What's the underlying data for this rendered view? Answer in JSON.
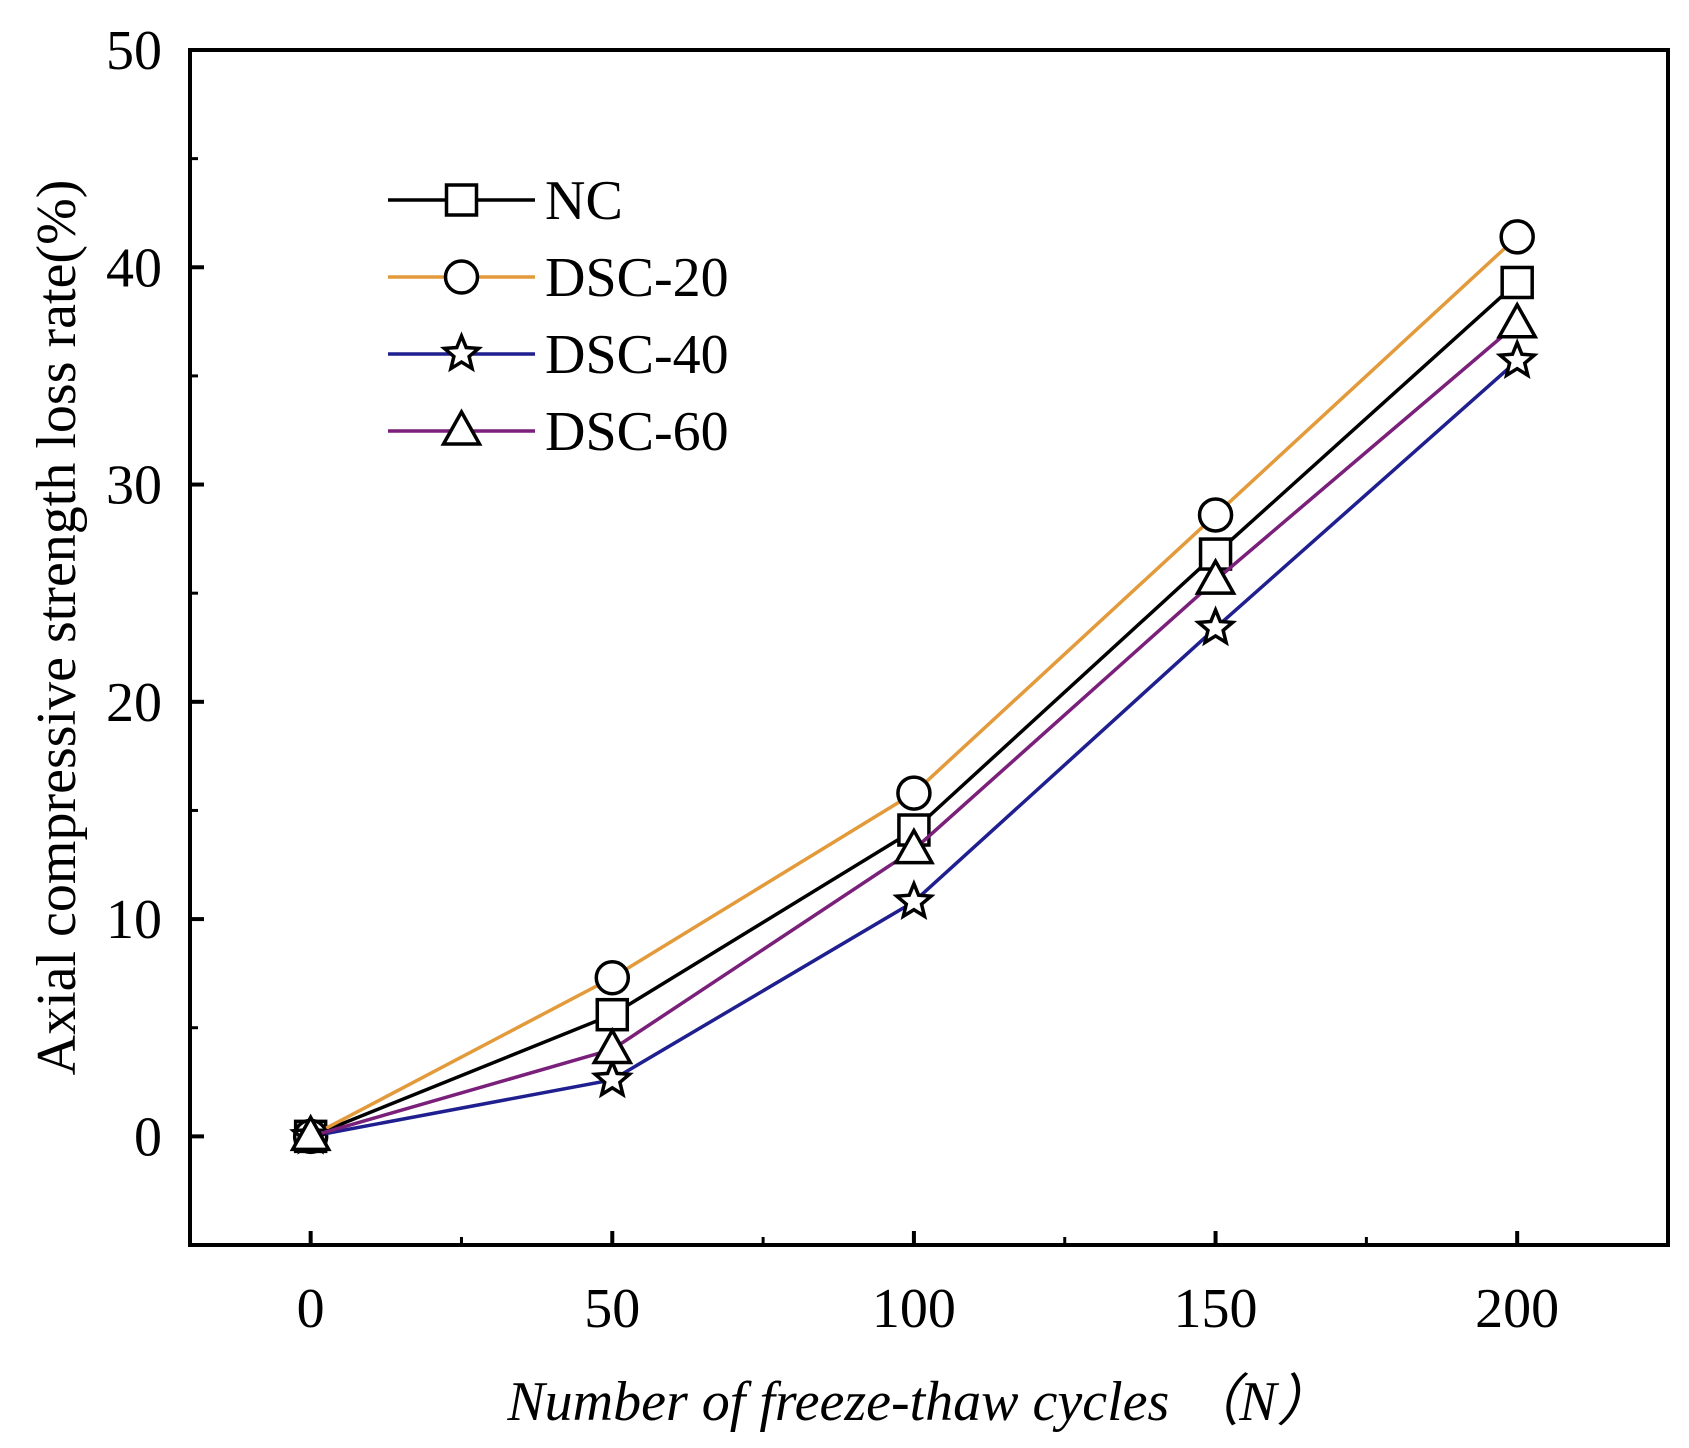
{
  "chart_data": {
    "type": "line",
    "xlabel": "Number of freeze-thaw cycles （N）",
    "ylabel": "Axial compressive strength loss rate(%)",
    "xlim": [
      -20,
      225
    ],
    "ylim": [
      -5,
      50
    ],
    "x": [
      0,
      50,
      100,
      150,
      200
    ],
    "xticks": [
      0,
      50,
      100,
      150,
      200
    ],
    "yticks": [
      0,
      10,
      20,
      30,
      40,
      50
    ],
    "legend_position": "top-left",
    "series": [
      {
        "name": "NC",
        "marker": "square",
        "color": "#000000",
        "values": [
          0,
          5.6,
          14.1,
          26.8,
          39.3
        ]
      },
      {
        "name": "DSC-20",
        "marker": "circle",
        "color": "#e39a3b",
        "values": [
          0,
          7.3,
          15.8,
          28.6,
          41.4
        ]
      },
      {
        "name": "DSC-40",
        "marker": "star",
        "color": "#1f1f8f",
        "values": [
          0,
          2.6,
          10.8,
          23.4,
          35.7
        ]
      },
      {
        "name": "DSC-60",
        "marker": "triangle",
        "color": "#7a1f7a",
        "values": [
          0,
          4.0,
          13.2,
          25.6,
          37.4
        ]
      }
    ]
  }
}
